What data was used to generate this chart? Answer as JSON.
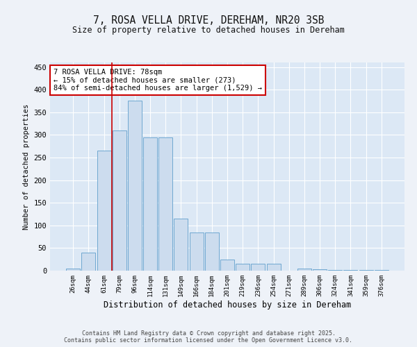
{
  "title_line1": "7, ROSA VELLA DRIVE, DEREHAM, NR20 3SB",
  "title_line2": "Size of property relative to detached houses in Dereham",
  "xlabel": "Distribution of detached houses by size in Dereham",
  "ylabel": "Number of detached properties",
  "categories": [
    "26sqm",
    "44sqm",
    "61sqm",
    "79sqm",
    "96sqm",
    "114sqm",
    "131sqm",
    "149sqm",
    "166sqm",
    "184sqm",
    "201sqm",
    "219sqm",
    "236sqm",
    "254sqm",
    "271sqm",
    "289sqm",
    "306sqm",
    "324sqm",
    "341sqm",
    "359sqm",
    "376sqm"
  ],
  "values": [
    5,
    40,
    265,
    310,
    375,
    295,
    295,
    115,
    85,
    85,
    25,
    15,
    15,
    15,
    0,
    5,
    3,
    2,
    1,
    1,
    1
  ],
  "bar_color": "#ccdcee",
  "bar_edge_color": "#6fa8d0",
  "vline_x_index": 3,
  "vline_color": "#cc0000",
  "annotation_text": "7 ROSA VELLA DRIVE: 78sqm\n← 15% of detached houses are smaller (273)\n84% of semi-detached houses are larger (1,529) →",
  "annotation_box_color": "#ffffff",
  "annotation_box_edge": "#cc0000",
  "background_color": "#eef2f8",
  "plot_bg_color": "#dce8f5",
  "footer_line1": "Contains HM Land Registry data © Crown copyright and database right 2025.",
  "footer_line2": "Contains public sector information licensed under the Open Government Licence v3.0.",
  "ylim": [
    0,
    460
  ],
  "yticks": [
    0,
    50,
    100,
    150,
    200,
    250,
    300,
    350,
    400,
    450
  ]
}
